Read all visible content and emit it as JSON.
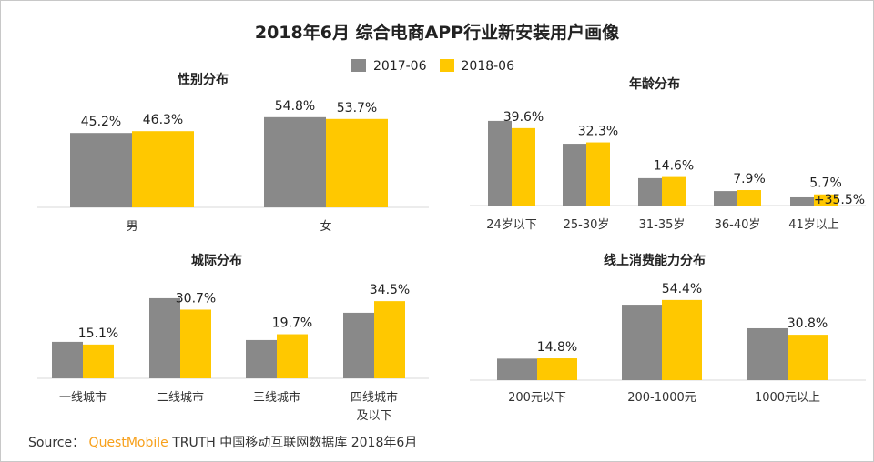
{
  "title": "2018年6月 综合电商APP行业新安装用户画像",
  "legend": [
    {
      "name": "2017-06",
      "color": "#898989"
    },
    {
      "name": "2018-06",
      "color": "#ffc800"
    }
  ],
  "source": {
    "prefix": "Source：",
    "brand": "QuestMobile",
    "text": "TRUTH 中国移动互联网数据库 2018年6月"
  },
  "chart_data": [
    {
      "type": "bar",
      "title": "性别分布",
      "categories": [
        "男",
        "女"
      ],
      "series": [
        {
          "name": "2017-06",
          "values": [
            45.2,
            54.8
          ],
          "labels": [
            "45.2%",
            "54.8%"
          ]
        },
        {
          "name": "2018-06",
          "values": [
            46.3,
            53.7
          ],
          "labels": [
            "46.3%",
            "53.7%"
          ]
        }
      ],
      "grid": false
    },
    {
      "type": "bar",
      "title": "年龄分布",
      "categories": [
        "24岁以下",
        "25-30岁",
        "31-35岁",
        "36-40岁",
        "41岁以上"
      ],
      "series": [
        {
          "name": "2017-06",
          "values": [
            43.3,
            31.6,
            14.0,
            7.4,
            4.2
          ],
          "labels": []
        },
        {
          "name": "2018-06",
          "values": [
            39.6,
            32.3,
            14.6,
            7.9,
            5.7
          ],
          "labels": [
            "39.6%",
            "32.3%",
            "14.6%",
            "7.9%",
            "5.7%"
          ]
        }
      ],
      "annotations": [
        {
          "category": "41岁以上",
          "text": "+35.5%"
        }
      ],
      "grid": false
    },
    {
      "type": "bar",
      "title": "城际分布",
      "categories": [
        "一线城市",
        "二线城市",
        "三线城市",
        "四线城市\n及以下"
      ],
      "series": [
        {
          "name": "2017-06",
          "values": [
            16.3,
            35.8,
            17.1,
            29.3
          ],
          "labels": []
        },
        {
          "name": "2018-06",
          "values": [
            15.1,
            30.7,
            19.7,
            34.5
          ],
          "labels": [
            "15.1%",
            "30.7%",
            "19.7%",
            "34.5%"
          ]
        }
      ],
      "grid": false
    },
    {
      "type": "bar",
      "title": "线上消费能力分布",
      "categories": [
        "200元以下",
        "200-1000元",
        "1000元以上"
      ],
      "series": [
        {
          "name": "2017-06",
          "values": [
            14.6,
            51.2,
            35.2
          ],
          "labels": []
        },
        {
          "name": "2018-06",
          "values": [
            14.8,
            54.4,
            30.8
          ],
          "labels": [
            "14.8%",
            "54.4%",
            "30.8%"
          ]
        }
      ],
      "grid": false
    }
  ]
}
